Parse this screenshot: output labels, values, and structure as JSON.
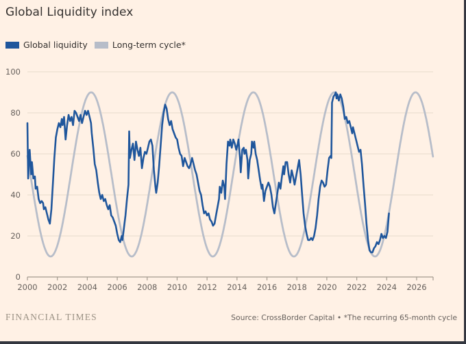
{
  "header": {
    "title": "Global Liquidity index"
  },
  "legend": {
    "items": [
      {
        "label": "Global liquidity",
        "color": "#1f569c"
      },
      {
        "label": "Long-term cycle*",
        "color": "#b7bdc9"
      }
    ]
  },
  "footer": {
    "brand": "FINANCIAL TIMES",
    "source": "Source: CrossBorder Capital • *The recurring 65-month cycle"
  },
  "colors": {
    "background": "#fff1e5",
    "liquidity_line": "#1f569c",
    "cycle_line": "#b7bdc9",
    "gridline": "#e7dacb",
    "axis": "#a29a8e",
    "tick_text": "#66605c",
    "title_text": "#33302e"
  },
  "chart_data": {
    "type": "line",
    "title": "Global Liquidity index",
    "xlabel": "",
    "ylabel": "",
    "x_axis": {
      "min": 2000,
      "max": 2027.1,
      "ticks": [
        2000,
        2002,
        2004,
        2006,
        2008,
        2010,
        2012,
        2014,
        2016,
        2018,
        2020,
        2022,
        2024,
        2026
      ],
      "edge_tick": true
    },
    "y_axis": {
      "min": 0,
      "max": 100,
      "ticks": [
        0,
        20,
        40,
        60,
        80,
        100
      ],
      "grid": true
    },
    "legend_position": "top-left",
    "series": [
      {
        "name": "Global liquidity",
        "type": "jagged_line",
        "points": [
          [
            2000.0,
            75
          ],
          [
            2000.05,
            48
          ],
          [
            2000.15,
            62
          ],
          [
            2000.25,
            50
          ],
          [
            2000.3,
            56
          ],
          [
            2000.4,
            48
          ],
          [
            2000.5,
            49
          ],
          [
            2000.55,
            43
          ],
          [
            2000.65,
            44
          ],
          [
            2000.75,
            38
          ],
          [
            2000.85,
            36
          ],
          [
            2000.95,
            37
          ],
          [
            2001.05,
            36
          ],
          [
            2001.1,
            33
          ],
          [
            2001.2,
            34
          ],
          [
            2001.3,
            31
          ],
          [
            2001.4,
            28
          ],
          [
            2001.5,
            26
          ],
          [
            2001.6,
            33
          ],
          [
            2001.7,
            45
          ],
          [
            2001.8,
            58
          ],
          [
            2001.9,
            68
          ],
          [
            2002.0,
            72
          ],
          [
            2002.1,
            75
          ],
          [
            2002.2,
            73
          ],
          [
            2002.3,
            77
          ],
          [
            2002.35,
            74
          ],
          [
            2002.45,
            78
          ],
          [
            2002.55,
            67
          ],
          [
            2002.65,
            74
          ],
          [
            2002.75,
            79
          ],
          [
            2002.85,
            76
          ],
          [
            2002.95,
            78
          ],
          [
            2003.05,
            74
          ],
          [
            2003.15,
            81
          ],
          [
            2003.25,
            80
          ],
          [
            2003.35,
            78
          ],
          [
            2003.45,
            76
          ],
          [
            2003.55,
            79
          ],
          [
            2003.65,
            75
          ],
          [
            2003.75,
            78
          ],
          [
            2003.85,
            81
          ],
          [
            2003.95,
            79
          ],
          [
            2004.05,
            81
          ],
          [
            2004.15,
            78
          ],
          [
            2004.25,
            75
          ],
          [
            2004.3,
            70
          ],
          [
            2004.4,
            63
          ],
          [
            2004.5,
            55
          ],
          [
            2004.6,
            52
          ],
          [
            2004.7,
            46
          ],
          [
            2004.8,
            41
          ],
          [
            2004.9,
            38
          ],
          [
            2005.0,
            40
          ],
          [
            2005.1,
            37
          ],
          [
            2005.2,
            38
          ],
          [
            2005.3,
            35
          ],
          [
            2005.4,
            33
          ],
          [
            2005.5,
            35
          ],
          [
            2005.6,
            30
          ],
          [
            2005.7,
            29
          ],
          [
            2005.8,
            27
          ],
          [
            2005.9,
            25
          ],
          [
            2006.0,
            21
          ],
          [
            2006.1,
            18
          ],
          [
            2006.2,
            17
          ],
          [
            2006.3,
            20
          ],
          [
            2006.35,
            18
          ],
          [
            2006.45,
            24
          ],
          [
            2006.55,
            30
          ],
          [
            2006.65,
            38
          ],
          [
            2006.75,
            45
          ],
          [
            2006.8,
            71
          ],
          [
            2006.85,
            58
          ],
          [
            2006.95,
            62
          ],
          [
            2007.05,
            65
          ],
          [
            2007.15,
            57
          ],
          [
            2007.25,
            66
          ],
          [
            2007.35,
            62
          ],
          [
            2007.45,
            59
          ],
          [
            2007.55,
            63
          ],
          [
            2007.65,
            53
          ],
          [
            2007.75,
            58
          ],
          [
            2007.85,
            61
          ],
          [
            2007.95,
            60
          ],
          [
            2008.05,
            63
          ],
          [
            2008.15,
            66
          ],
          [
            2008.25,
            67
          ],
          [
            2008.35,
            64
          ],
          [
            2008.45,
            52
          ],
          [
            2008.55,
            44
          ],
          [
            2008.6,
            41
          ],
          [
            2008.7,
            46
          ],
          [
            2008.8,
            54
          ],
          [
            2008.9,
            64
          ],
          [
            2009.0,
            74
          ],
          [
            2009.1,
            80
          ],
          [
            2009.2,
            84
          ],
          [
            2009.3,
            82
          ],
          [
            2009.4,
            77
          ],
          [
            2009.5,
            74
          ],
          [
            2009.6,
            76
          ],
          [
            2009.7,
            72
          ],
          [
            2009.8,
            70
          ],
          [
            2009.9,
            68
          ],
          [
            2010.0,
            67
          ],
          [
            2010.1,
            63
          ],
          [
            2010.2,
            60
          ],
          [
            2010.3,
            59
          ],
          [
            2010.4,
            54
          ],
          [
            2010.5,
            58
          ],
          [
            2010.6,
            56
          ],
          [
            2010.7,
            54
          ],
          [
            2010.8,
            53
          ],
          [
            2010.9,
            55
          ],
          [
            2011.0,
            58
          ],
          [
            2011.1,
            55
          ],
          [
            2011.2,
            52
          ],
          [
            2011.3,
            50
          ],
          [
            2011.4,
            46
          ],
          [
            2011.5,
            42
          ],
          [
            2011.6,
            40
          ],
          [
            2011.7,
            35
          ],
          [
            2011.8,
            31
          ],
          [
            2011.9,
            32
          ],
          [
            2012.0,
            30
          ],
          [
            2012.1,
            31
          ],
          [
            2012.2,
            28
          ],
          [
            2012.3,
            27
          ],
          [
            2012.4,
            25
          ],
          [
            2012.5,
            26
          ],
          [
            2012.6,
            30
          ],
          [
            2012.7,
            34
          ],
          [
            2012.8,
            38
          ],
          [
            2012.85,
            44
          ],
          [
            2012.95,
            41
          ],
          [
            2013.05,
            47
          ],
          [
            2013.15,
            44
          ],
          [
            2013.2,
            38
          ],
          [
            2013.3,
            55
          ],
          [
            2013.4,
            66
          ],
          [
            2013.5,
            64
          ],
          [
            2013.55,
            67
          ],
          [
            2013.65,
            63
          ],
          [
            2013.75,
            67
          ],
          [
            2013.85,
            65
          ],
          [
            2013.95,
            62
          ],
          [
            2014.05,
            65
          ],
          [
            2014.1,
            67
          ],
          [
            2014.2,
            58
          ],
          [
            2014.25,
            51
          ],
          [
            2014.35,
            62
          ],
          [
            2014.45,
            63
          ],
          [
            2014.5,
            60
          ],
          [
            2014.6,
            62
          ],
          [
            2014.7,
            57
          ],
          [
            2014.75,
            48
          ],
          [
            2014.85,
            57
          ],
          [
            2014.95,
            60
          ],
          [
            2015.0,
            66
          ],
          [
            2015.1,
            63
          ],
          [
            2015.15,
            66
          ],
          [
            2015.25,
            60
          ],
          [
            2015.35,
            57
          ],
          [
            2015.45,
            52
          ],
          [
            2015.55,
            47
          ],
          [
            2015.65,
            43
          ],
          [
            2015.7,
            45
          ],
          [
            2015.8,
            37
          ],
          [
            2015.9,
            42
          ],
          [
            2016.0,
            44
          ],
          [
            2016.1,
            46
          ],
          [
            2016.2,
            44
          ],
          [
            2016.3,
            40
          ],
          [
            2016.4,
            34
          ],
          [
            2016.5,
            31
          ],
          [
            2016.6,
            36
          ],
          [
            2016.7,
            41
          ],
          [
            2016.8,
            46
          ],
          [
            2016.9,
            43
          ],
          [
            2017.0,
            49
          ],
          [
            2017.1,
            54
          ],
          [
            2017.15,
            50
          ],
          [
            2017.25,
            56
          ],
          [
            2017.35,
            56
          ],
          [
            2017.45,
            50
          ],
          [
            2017.55,
            46
          ],
          [
            2017.65,
            52
          ],
          [
            2017.75,
            49
          ],
          [
            2017.85,
            45
          ],
          [
            2017.95,
            49
          ],
          [
            2018.05,
            53
          ],
          [
            2018.15,
            57
          ],
          [
            2018.25,
            50
          ],
          [
            2018.35,
            40
          ],
          [
            2018.45,
            31
          ],
          [
            2018.55,
            25
          ],
          [
            2018.65,
            21
          ],
          [
            2018.75,
            18
          ],
          [
            2018.85,
            18
          ],
          [
            2018.95,
            19
          ],
          [
            2019.05,
            18
          ],
          [
            2019.15,
            20
          ],
          [
            2019.25,
            24
          ],
          [
            2019.35,
            30
          ],
          [
            2019.45,
            38
          ],
          [
            2019.55,
            44
          ],
          [
            2019.65,
            47
          ],
          [
            2019.75,
            46
          ],
          [
            2019.85,
            44
          ],
          [
            2019.95,
            45
          ],
          [
            2020.05,
            52
          ],
          [
            2020.15,
            58
          ],
          [
            2020.25,
            59
          ],
          [
            2020.3,
            58
          ],
          [
            2020.35,
            85
          ],
          [
            2020.45,
            88
          ],
          [
            2020.55,
            89
          ],
          [
            2020.6,
            90
          ],
          [
            2020.65,
            87
          ],
          [
            2020.7,
            89
          ],
          [
            2020.8,
            86
          ],
          [
            2020.9,
            89
          ],
          [
            2021.0,
            87
          ],
          [
            2021.1,
            83
          ],
          [
            2021.2,
            77
          ],
          [
            2021.3,
            78
          ],
          [
            2021.4,
            75
          ],
          [
            2021.5,
            76
          ],
          [
            2021.6,
            73
          ],
          [
            2021.7,
            70
          ],
          [
            2021.75,
            73
          ],
          [
            2021.85,
            70
          ],
          [
            2021.95,
            67
          ],
          [
            2022.05,
            64
          ],
          [
            2022.15,
            61
          ],
          [
            2022.25,
            62
          ],
          [
            2022.35,
            55
          ],
          [
            2022.45,
            45
          ],
          [
            2022.55,
            36
          ],
          [
            2022.65,
            26
          ],
          [
            2022.75,
            18
          ],
          [
            2022.85,
            13
          ],
          [
            2022.95,
            12
          ],
          [
            2023.05,
            12
          ],
          [
            2023.15,
            14
          ],
          [
            2023.25,
            15
          ],
          [
            2023.35,
            17
          ],
          [
            2023.45,
            16
          ],
          [
            2023.55,
            18
          ],
          [
            2023.65,
            21
          ],
          [
            2023.75,
            19
          ],
          [
            2023.85,
            20
          ],
          [
            2023.95,
            19
          ],
          [
            2024.05,
            22
          ],
          [
            2024.15,
            31
          ]
        ]
      },
      {
        "name": "Long-term cycle*",
        "type": "sine",
        "mean": 50,
        "amplitude": 40,
        "period_years": 5.4167,
        "trough_year": 2001.55,
        "x_start": 2000.0,
        "x_end": 2027.1,
        "note": "The recurring 65-month cycle; peaks ~90 (2004.3, 2009.7, 2015.1, 2020.5, 2025.9), troughs ~10 (2001.6, 2007.0, 2012.4, 2017.8, 2023.2)"
      }
    ]
  }
}
